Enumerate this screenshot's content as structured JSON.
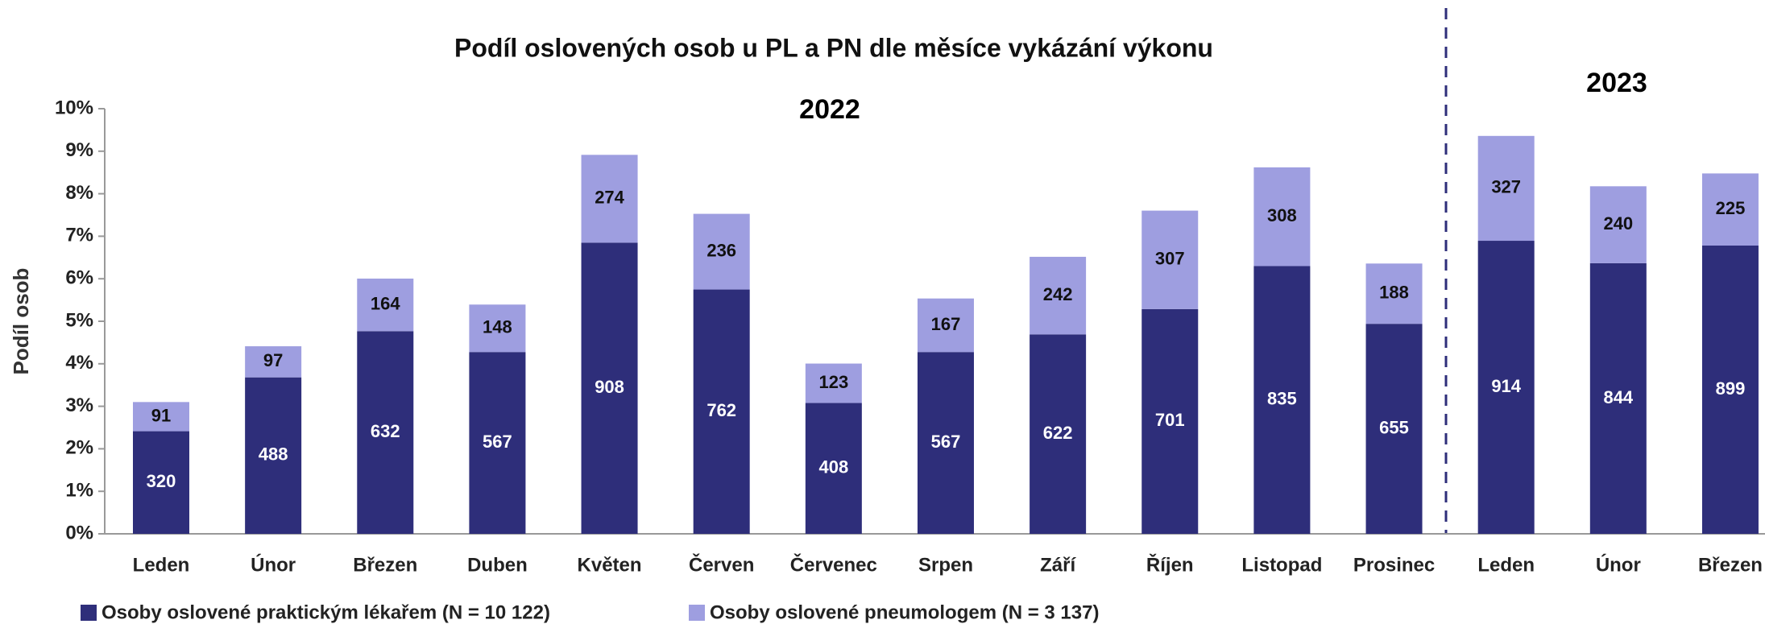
{
  "chart_data": {
    "type": "stacked_bar",
    "title": "Podíl oslovených osob u PL a PN dle měsíce vykázání výkonu",
    "y_label": "Podíl osob",
    "annotations": [
      "2022",
      "2023"
    ],
    "categories": [
      "Leden",
      "Únor",
      "Březen",
      "Duben",
      "Květen",
      "Červen",
      "Červenec",
      "Srpen",
      "Září",
      "Říjen",
      "Listopad",
      "Prosinec",
      "Leden",
      "Únor",
      "Březen"
    ],
    "series": [
      {
        "name": "Osoby oslovené praktickým lékařem (N = 10 122)",
        "color": "#2e2e7a",
        "values": [
          320,
          488,
          632,
          567,
          908,
          762,
          408,
          567,
          622,
          701,
          835,
          655,
          914,
          844,
          899
        ]
      },
      {
        "name": "Osoby oslovené pneumologem (N = 3 137)",
        "color": "#9e9ee0",
        "values": [
          91,
          97,
          164,
          148,
          274,
          236,
          123,
          167,
          242,
          307,
          308,
          188,
          327,
          240,
          225
        ]
      }
    ],
    "ylim": [
      0,
      1325.9
    ],
    "yticks": [
      {
        "value": 0,
        "label": "0%"
      },
      {
        "value": 132.59,
        "label": "1%"
      },
      {
        "value": 265.18,
        "label": "2%"
      },
      {
        "value": 397.77,
        "label": "3%"
      },
      {
        "value": 530.36,
        "label": "4%"
      },
      {
        "value": 662.95,
        "label": "5%"
      },
      {
        "value": 795.54,
        "label": "6%"
      },
      {
        "value": 928.13,
        "label": "7%"
      },
      {
        "value": 1060.72,
        "label": "8%"
      },
      {
        "value": 1193.31,
        "label": "9%"
      },
      {
        "value": 1325.9,
        "label": "10%"
      }
    ],
    "legend": "bottom-left"
  }
}
